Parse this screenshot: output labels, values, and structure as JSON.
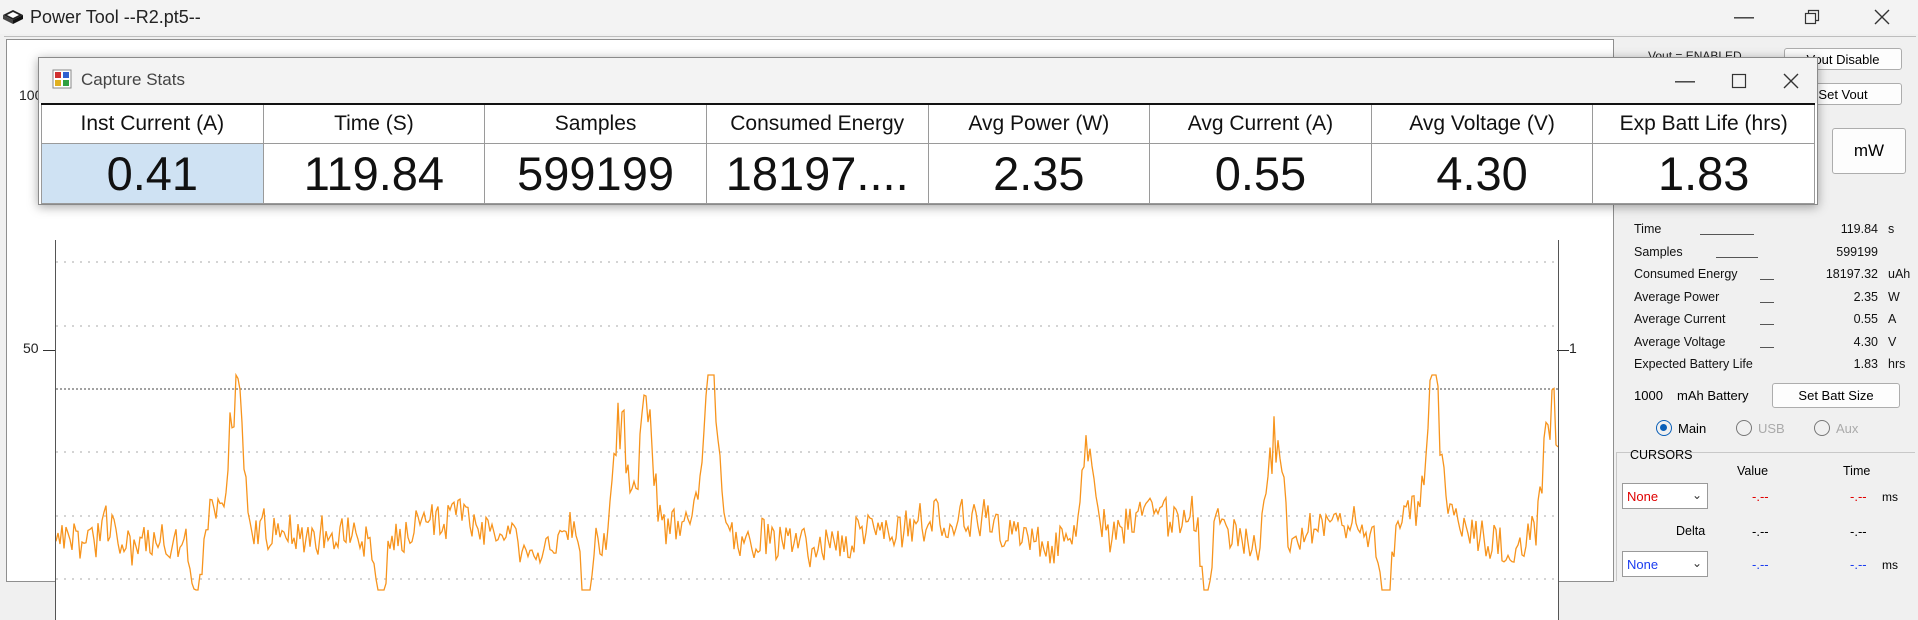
{
  "window": {
    "title": "Power Tool --R2.pt5--",
    "icon": "chip-icon"
  },
  "chart": {
    "y_left_ticks": [
      "100",
      "50"
    ],
    "y_right_ticks": [
      "1"
    ],
    "trace_color": "#f7941d"
  },
  "right_panel": {
    "buttons": {
      "vout_disable": "Vout Disable",
      "set_vout": "Set Vout",
      "mw": "mW",
      "set_batt_size": "Set Batt Size"
    },
    "vout_status": "Vout = ENABLED",
    "stats": [
      {
        "label": "Time",
        "value": "119.84",
        "unit": "s"
      },
      {
        "label": "Samples",
        "value": "599199",
        "unit": ""
      },
      {
        "label": "Consumed Energy",
        "value": "18197.32",
        "unit": "uAh"
      },
      {
        "label": "Average Power",
        "value": "2.35",
        "unit": "W"
      },
      {
        "label": "Average Current",
        "value": "0.55",
        "unit": "A"
      },
      {
        "label": "Average Voltage",
        "value": "4.30",
        "unit": "V"
      },
      {
        "label": "Expected Battery Life",
        "value": "1.83",
        "unit": "hrs"
      }
    ],
    "battery": {
      "capacity": "1000",
      "unit_label": "mAh Battery"
    },
    "sources": [
      {
        "label": "Main",
        "selected": true
      },
      {
        "label": "USB",
        "selected": false
      },
      {
        "label": "Aux",
        "selected": false
      }
    ],
    "cursors": {
      "title": "CURSORS",
      "col_value": "Value",
      "col_time": "Time",
      "row1": {
        "select": "None",
        "value": "-.--",
        "time": "-.--",
        "unit": "ms"
      },
      "delta_label": "Delta",
      "delta": {
        "value": "-.--",
        "time": "-.--"
      },
      "row2": {
        "select": "None",
        "value": "-.--",
        "time": "-.--",
        "unit": "ms"
      }
    }
  },
  "dialog": {
    "title": "Capture Stats",
    "columns": [
      "Inst Current (A)",
      "Time (S)",
      "Samples",
      "Consumed Energy",
      "Avg Power (W)",
      "Avg Current (A)",
      "Avg Voltage (V)",
      "Exp Batt Life (hrs)"
    ],
    "values": [
      "0.41",
      "119.84",
      "599199",
      "18197....",
      "2.35",
      "0.55",
      "4.30",
      "1.83"
    ]
  }
}
